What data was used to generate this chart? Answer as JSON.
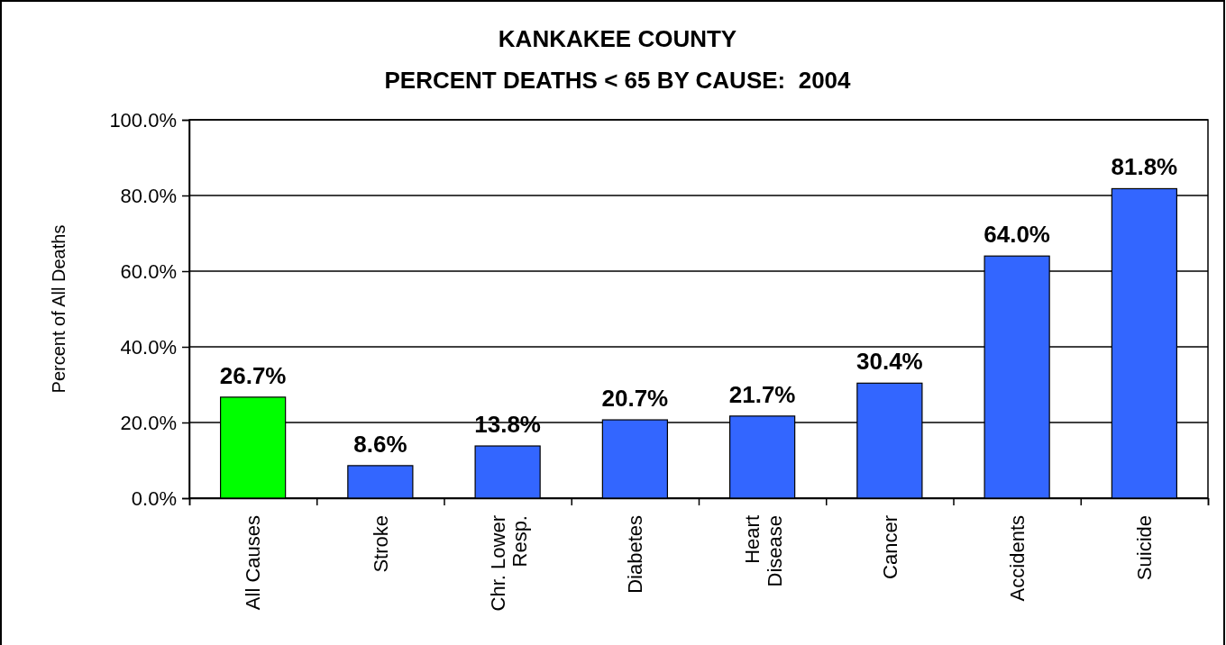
{
  "chart_data": {
    "type": "bar",
    "title": "KANKAKEE COUNTY",
    "subtitle": "PERCENT DEATHS < 65 BY CAUSE:  2004",
    "ylabel": "Percent of All Deaths",
    "categories": [
      "All Causes",
      "Stroke",
      "Chr. Lower Resp.",
      "Diabetes",
      "Heart Disease",
      "Cancer",
      "Accidents",
      "Suicide"
    ],
    "values": [
      26.7,
      8.6,
      13.8,
      20.7,
      21.7,
      30.4,
      64.0,
      81.8
    ],
    "value_labels": [
      "26.7%",
      "8.6%",
      "13.8%",
      "20.7%",
      "21.7%",
      "30.4%",
      "64.0%",
      "81.8%"
    ],
    "colors": [
      "#00ff00",
      "#3366ff",
      "#3366ff",
      "#3366ff",
      "#3366ff",
      "#3366ff",
      "#3366ff",
      "#3366ff"
    ],
    "ylim": [
      0,
      100
    ],
    "yticks": [
      {
        "value": 0,
        "label": "0.0%"
      },
      {
        "value": 20,
        "label": "20.0%"
      },
      {
        "value": 40,
        "label": "40.0%"
      },
      {
        "value": 60,
        "label": "60.0%"
      },
      {
        "value": 80,
        "label": "80.0%"
      },
      {
        "value": 100,
        "label": "100.0%"
      }
    ],
    "grid": "y"
  }
}
